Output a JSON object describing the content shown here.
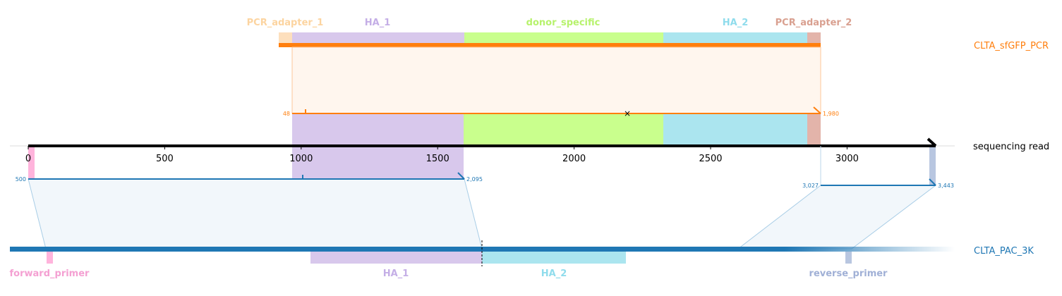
{
  "colors": {
    "pcr_adapter_1": "#fddfbd",
    "ha_1": "#d8c8ec",
    "donor_specific": "#c9ff8d",
    "ha_2": "#abe5ef",
    "pcr_adapter_2": "#e3b4aa",
    "forward_primer": "#ffb4dc",
    "reverse_primer": "#b8c6e0",
    "orange": "#ff7f0e",
    "blue": "#1f77b4",
    "read_axis": "#000000",
    "label_pcr_adapter_1": "#fcd4a0",
    "label_ha_1": "#c4aee6",
    "label_donor_specific": "#b7f26c",
    "label_ha_2": "#8fdcec",
    "label_pcr_adapter_2": "#d9a090",
    "label_forward_primer": "#f4a0d2",
    "label_reverse_primer": "#a0b0d6"
  },
  "read_axis": {
    "label": "sequencing read",
    "min": 0,
    "max": 3300,
    "ticks": [
      {
        "value": 0,
        "label": "0"
      },
      {
        "value": 500,
        "label": "500"
      },
      {
        "value": 1000,
        "label": "1000"
      },
      {
        "value": 1500,
        "label": "1500"
      },
      {
        "value": 2000,
        "label": "2000"
      },
      {
        "value": 2500,
        "label": "2500"
      },
      {
        "value": 3000,
        "label": "3000"
      }
    ]
  },
  "top_reference": {
    "name": "CLTA_sfGFP_PCR",
    "features": [
      {
        "key": "pcr_adapter_1",
        "label": "PCR_adapter_1",
        "start": 920,
        "end": 968
      },
      {
        "key": "ha_1",
        "label": "HA_1",
        "start": 968,
        "end": 1600
      },
      {
        "key": "donor_specific",
        "label": "donor_specific",
        "start": 1600,
        "end": 2330
      },
      {
        "key": "ha_2",
        "label": "HA_2",
        "start": 2330,
        "end": 2858
      },
      {
        "key": "pcr_adapter_2",
        "label": "PCR_adapter_2",
        "start": 2858,
        "end": 2905
      }
    ],
    "alignment": {
      "start_label": "48",
      "end_label": "1,980",
      "read_start": 968,
      "read_end": 2905,
      "mismatch_marker": "×"
    }
  },
  "bottom_reference": {
    "name": "CLTA_PAC_3K",
    "alignments": [
      {
        "start_label": "500",
        "end_label": "2,095",
        "read_start": 0,
        "read_end": 1600
      },
      {
        "start_label": "3,027",
        "end_label": "3,443",
        "read_start": 2905,
        "read_end": 3320
      }
    ],
    "features": [
      {
        "key": "forward_primer",
        "label": "forward_primer"
      },
      {
        "key": "ha_1",
        "label": "HA_1"
      },
      {
        "key": "ha_2",
        "label": "HA_2"
      },
      {
        "key": "reverse_primer",
        "label": "reverse_primer"
      }
    ]
  }
}
